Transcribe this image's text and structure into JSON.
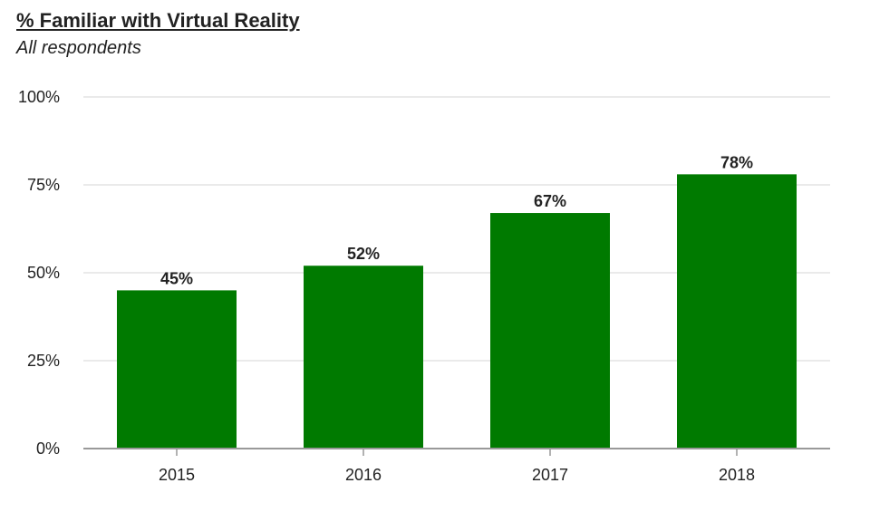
{
  "chart_data": {
    "type": "bar",
    "title": "% Familiar with Virtual Reality",
    "subtitle": "All respondents",
    "categories": [
      "2015",
      "2016",
      "2017",
      "2018"
    ],
    "values": [
      45,
      52,
      67,
      78
    ],
    "data_labels": [
      "45%",
      "52%",
      "67%",
      "78%"
    ],
    "yticks": [
      0,
      25,
      50,
      75,
      100
    ],
    "ytick_labels": [
      "0%",
      "25%",
      "50%",
      "75%",
      "100%"
    ],
    "ylim": [
      0,
      100
    ],
    "grid": true,
    "bar_color": "#007a00",
    "grid_color": "#e4e4e4",
    "axis_color": "#999999"
  }
}
